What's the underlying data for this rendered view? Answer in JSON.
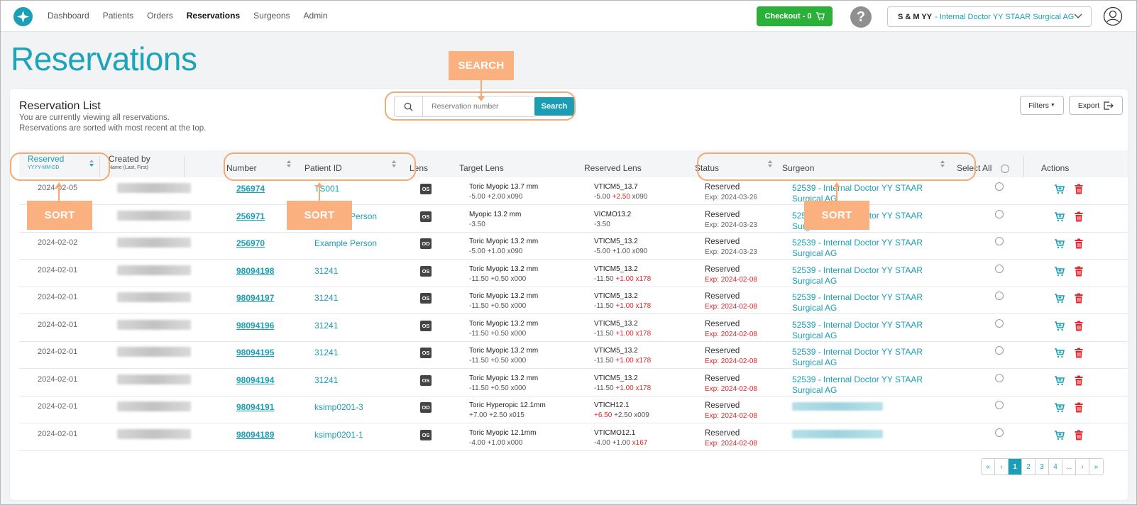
{
  "nav": {
    "links": [
      "Dashboard",
      "Patients",
      "Orders",
      "Reservations",
      "Surgeons",
      "Admin"
    ],
    "active_index": 3,
    "checkout_label": "Checkout - 0",
    "help_label": "?",
    "account_name": "S & M YY",
    "account_sub": "- Internal Doctor YY STAAR Surgical AG"
  },
  "page": {
    "title": "Reservations"
  },
  "list": {
    "title": "Reservation List",
    "subtitle_1": "You are currently viewing all reservations.",
    "subtitle_2": "Reservations are sorted with most recent at the top.",
    "search_placeholder": "Reservation number",
    "search_button": "Search",
    "filters_label": "Filters",
    "export_label": "Export"
  },
  "columns": {
    "reserved": "Reserved",
    "reserved_format": "YYYY-MM-DD",
    "created_by": "Created by",
    "created_by_format": "Name (Last, First)",
    "number": "Number",
    "patient_id": "Patient ID",
    "lens": "Lens",
    "target_lens": "Target Lens",
    "reserved_lens": "Reserved Lens",
    "status": "Status",
    "surgeon": "Surgeon",
    "select_all": "Select All",
    "actions": "Actions"
  },
  "rows": [
    {
      "date": "2024-02-05",
      "number": "256974",
      "pid": "TS001",
      "lens": "OS",
      "tl1": "Toric Myopic 13.7 mm",
      "tl2": "-5.00 +2.00 x090",
      "rl1": "VTICM5_13.7",
      "rl2a": "-5.00 ",
      "rl2b": "+2.50",
      "rl2c": " x090",
      "status": "Reserved",
      "exp": "Exp: 2024-03-26",
      "exp_red": false,
      "surgeon": "52539 - Internal Doctor YY STAAR Surgical AG",
      "surgeon_blur": false
    },
    {
      "date": "2024-02-05",
      "number": "256971",
      "pid": "Example Person",
      "lens": "OS",
      "tl1": "Myopic 13.2 mm",
      "tl2": "-3.50",
      "rl1": "VICMO13.2",
      "rl2a": "-3.50",
      "rl2b": "",
      "rl2c": "",
      "status": "Reserved",
      "exp": "Exp: 2024-03-23",
      "exp_red": false,
      "surgeon": "52539 - Internal Doctor YY STAAR Surgical AG",
      "surgeon_blur": false
    },
    {
      "date": "2024-02-02",
      "number": "256970",
      "pid": "Example Person",
      "lens": "OD",
      "tl1": "Toric Myopic 13.2 mm",
      "tl2": "-5.00 +1.00 x090",
      "rl1": "VTICM5_13.2",
      "rl2a": "-5.00 +1.00 x090",
      "rl2b": "",
      "rl2c": "",
      "status": "Reserved",
      "exp": "Exp: 2024-03-23",
      "exp_red": false,
      "surgeon": "52539 - Internal Doctor YY STAAR Surgical AG",
      "surgeon_blur": false
    },
    {
      "date": "2024-02-01",
      "number": "98094198",
      "pid": "31241",
      "lens": "OS",
      "tl1": "Toric Myopic 13.2 mm",
      "tl2": "-11.50 +0.50 x000",
      "rl1": "VTICM5_13.2",
      "rl2a": "-11.50 ",
      "rl2b": "+1.00 x178",
      "rl2c": "",
      "status": "Reserved",
      "exp": "Exp: 2024-02-08",
      "exp_red": true,
      "surgeon": "52539 - Internal Doctor YY STAAR Surgical AG",
      "surgeon_blur": false
    },
    {
      "date": "2024-02-01",
      "number": "98094197",
      "pid": "31241",
      "lens": "OS",
      "tl1": "Toric Myopic 13.2 mm",
      "tl2": "-11.50 +0.50 x000",
      "rl1": "VTICM5_13.2",
      "rl2a": "-11.50 ",
      "rl2b": "+1.00 x178",
      "rl2c": "",
      "status": "Reserved",
      "exp": "Exp: 2024-02-08",
      "exp_red": true,
      "surgeon": "52539 - Internal Doctor YY STAAR Surgical AG",
      "surgeon_blur": false
    },
    {
      "date": "2024-02-01",
      "number": "98094196",
      "pid": "31241",
      "lens": "OS",
      "tl1": "Toric Myopic 13.2 mm",
      "tl2": "-11.50 +0.50 x000",
      "rl1": "VTICM5_13.2",
      "rl2a": "-11.50 ",
      "rl2b": "+1.00 x178",
      "rl2c": "",
      "status": "Reserved",
      "exp": "Exp: 2024-02-08",
      "exp_red": true,
      "surgeon": "52539 - Internal Doctor YY STAAR Surgical AG",
      "surgeon_blur": false
    },
    {
      "date": "2024-02-01",
      "number": "98094195",
      "pid": "31241",
      "lens": "OS",
      "tl1": "Toric Myopic 13.2 mm",
      "tl2": "-11.50 +0.50 x000",
      "rl1": "VTICM5_13.2",
      "rl2a": "-11.50 ",
      "rl2b": "+1.00 x178",
      "rl2c": "",
      "status": "Reserved",
      "exp": "Exp: 2024-02-08",
      "exp_red": true,
      "surgeon": "52539 - Internal Doctor YY STAAR Surgical AG",
      "surgeon_blur": false
    },
    {
      "date": "2024-02-01",
      "number": "98094194",
      "pid": "31241",
      "lens": "OS",
      "tl1": "Toric Myopic 13.2 mm",
      "tl2": "-11.50 +0.50 x000",
      "rl1": "VTICM5_13.2",
      "rl2a": "-11.50 ",
      "rl2b": "+1.00 x178",
      "rl2c": "",
      "status": "Reserved",
      "exp": "Exp: 2024-02-08",
      "exp_red": true,
      "surgeon": "52539 - Internal Doctor YY STAAR Surgical AG",
      "surgeon_blur": false
    },
    {
      "date": "2024-02-01",
      "number": "98094191",
      "pid": "ksimp0201-3",
      "lens": "OD",
      "tl1": "Toric Hyperopic 12.1mm",
      "tl2": "+7.00 +2.50 x015",
      "rl1": "VTICH12.1",
      "rl2a": "",
      "rl2b": "+6.50",
      "rl2c": " +2.50 x009",
      "status": "Reserved",
      "exp": "Exp: 2024-02-08",
      "exp_red": true,
      "surgeon": "",
      "surgeon_blur": true
    },
    {
      "date": "2024-02-01",
      "number": "98094189",
      "pid": "ksimp0201-1",
      "lens": "OS",
      "tl1": "Toric Myopic 12.1mm",
      "tl2": "-4.00 +1.00 x000",
      "rl1": "VTICMO12.1",
      "rl2a": "-4.00 +1.00 ",
      "rl2b": "x167",
      "rl2c": "",
      "status": "Reserved",
      "exp": "Exp: 2024-02-08",
      "exp_red": true,
      "surgeon": "",
      "surgeon_blur": true
    }
  ],
  "pagination": [
    "«",
    "‹",
    "1",
    "2",
    "3",
    "4",
    "...",
    "›",
    "»"
  ],
  "pagination_active": "1",
  "annotations": {
    "search": "SEARCH",
    "sort": "SORT"
  },
  "colors": {
    "brand_teal": "#1a9fb6",
    "checkout_green": "#2bb03a",
    "danger_red": "#e3262b",
    "annotation_orange": "#fbb17f"
  }
}
